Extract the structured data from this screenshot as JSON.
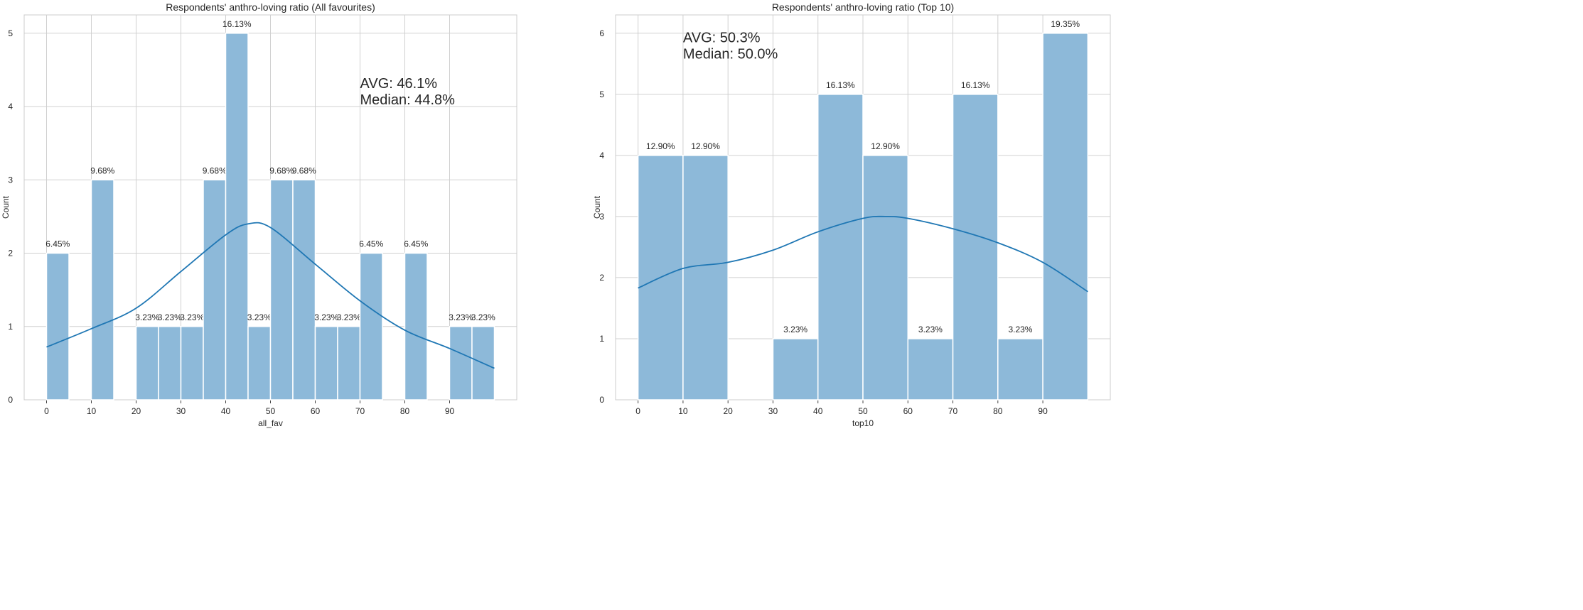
{
  "chart_data": [
    {
      "type": "bar",
      "title": "Respondents' anthro-loving ratio (All favourites)",
      "xlabel": "all_fav",
      "ylabel": "Count",
      "xlim": [
        -5,
        105
      ],
      "ylim": [
        0,
        5.25
      ],
      "xticks": [
        0,
        10,
        20,
        30,
        40,
        50,
        60,
        70,
        80,
        90
      ],
      "yticks": [
        0,
        1,
        2,
        3,
        4,
        5
      ],
      "bin_width": 5,
      "bin_starts": [
        0,
        5,
        10,
        15,
        20,
        25,
        30,
        35,
        40,
        45,
        50,
        55,
        60,
        65,
        70,
        75,
        80,
        85,
        90,
        95
      ],
      "values": [
        2,
        0,
        3,
        0,
        1,
        1,
        1,
        3,
        5,
        1,
        3,
        3,
        1,
        1,
        2,
        0,
        2,
        0,
        1,
        1
      ],
      "bar_labels": [
        "6.45%",
        "",
        "9.68%",
        "",
        "3.23%",
        "3.23%",
        "3.23%",
        "9.68%",
        "16.13%",
        "3.23%",
        "9.68%",
        "9.68%",
        "3.23%",
        "3.23%",
        "6.45%",
        "",
        "6.45%",
        "",
        "3.23%",
        "3.23%"
      ],
      "kde": {
        "x": [
          0,
          10,
          20,
          30,
          40,
          45,
          50,
          60,
          70,
          80,
          90,
          100
        ],
        "y": [
          0.72,
          0.97,
          1.25,
          1.75,
          2.25,
          2.4,
          2.35,
          1.85,
          1.35,
          0.95,
          0.7,
          0.43
        ]
      },
      "annotation": {
        "lines": [
          "AVG: 46.1%",
          "Median: 44.8%"
        ],
        "x": 70,
        "y": 4.25
      },
      "grid": true
    },
    {
      "type": "bar",
      "title": "Respondents' anthro-loving ratio (Top 10)",
      "xlabel": "top10",
      "ylabel": "Count",
      "xlim": [
        -5,
        105
      ],
      "ylim": [
        0,
        6.3
      ],
      "xticks": [
        0,
        10,
        20,
        30,
        40,
        50,
        60,
        70,
        80,
        90
      ],
      "yticks": [
        0,
        1,
        2,
        3,
        4,
        5,
        6
      ],
      "bin_width": 10,
      "bin_starts": [
        0,
        10,
        20,
        30,
        40,
        50,
        60,
        70,
        80,
        90
      ],
      "values": [
        4,
        4,
        0,
        1,
        5,
        4,
        1,
        5,
        1,
        6
      ],
      "bar_labels": [
        "12.90%",
        "12.90%",
        "",
        "3.23%",
        "16.13%",
        "12.90%",
        "3.23%",
        "16.13%",
        "3.23%",
        "19.35%"
      ],
      "kde": {
        "x": [
          0,
          10,
          20,
          30,
          40,
          50,
          55,
          60,
          70,
          80,
          90,
          100
        ],
        "y": [
          1.83,
          2.15,
          2.25,
          2.45,
          2.75,
          2.97,
          3.0,
          2.97,
          2.8,
          2.57,
          2.25,
          1.77
        ]
      },
      "annotation": {
        "lines": [
          "AVG: 50.3%",
          "Median: 50.0%"
        ],
        "x": 10,
        "y": 5.85
      },
      "grid": true
    }
  ],
  "colors": {
    "bar": "#8db9d9",
    "line": "#1f77b4",
    "grid": "#d0d0d0",
    "frame": "#cccccc"
  }
}
